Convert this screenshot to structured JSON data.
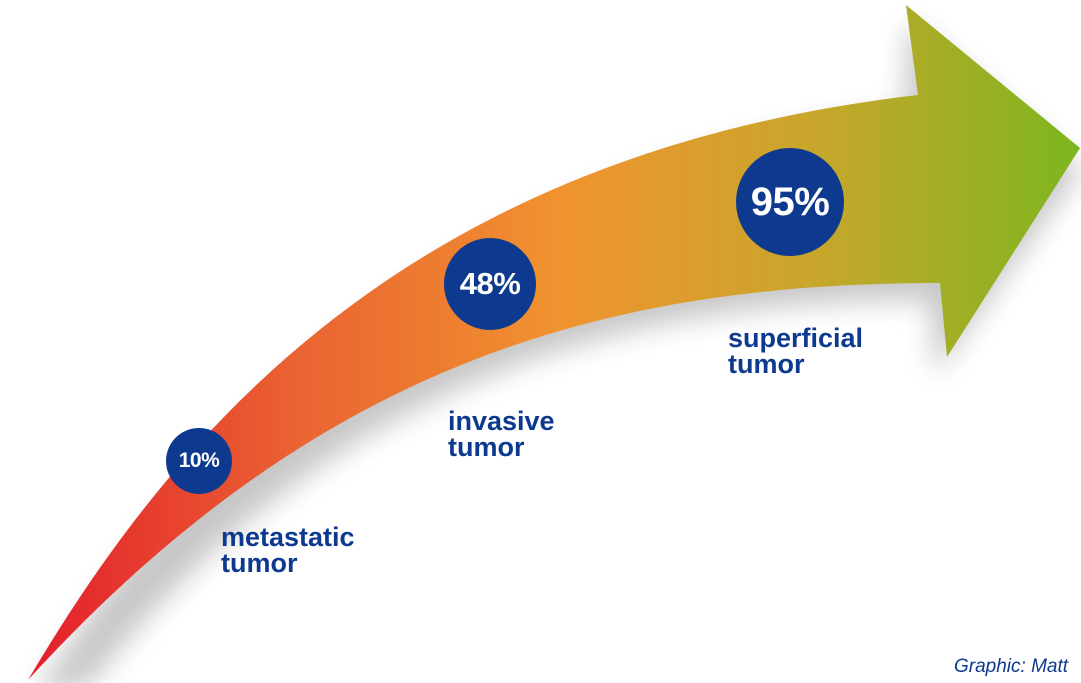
{
  "stages": [
    {
      "value": "10%",
      "line1": "metastatic",
      "line2": "tumor"
    },
    {
      "value": "48%",
      "line1": "invasive",
      "line2": "tumor"
    },
    {
      "value": "95%",
      "line1": "superficial",
      "line2": "tumor"
    }
  ],
  "credit": "Graphic: Matt",
  "colors": {
    "arrow_start": "#e3172b",
    "arrow_mid": "#f0932f",
    "arrow_end": "#7db61f",
    "badge": "#0d3a8e",
    "text": "#0d3a8e"
  }
}
